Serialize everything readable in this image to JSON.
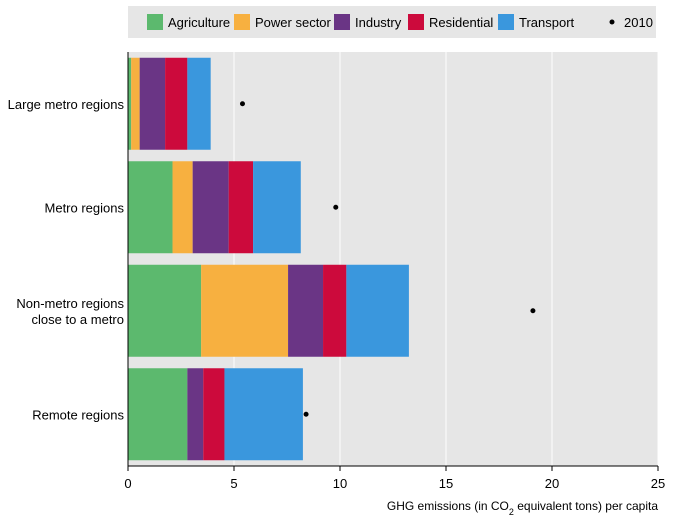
{
  "chart_data": {
    "type": "bar",
    "orientation": "horizontal",
    "stacked": true,
    "categories": [
      [
        "Large metro regions"
      ],
      [
        "Metro regions"
      ],
      [
        "Non-metro regions",
        "close to a metro"
      ],
      [
        "Remote regions"
      ]
    ],
    "series": [
      {
        "name": "Agriculture",
        "color": "#5cb96e",
        "values": [
          0.15,
          2.1,
          3.45,
          2.8
        ]
      },
      {
        "name": "Power sector",
        "color": "#f7b040",
        "values": [
          0.4,
          0.95,
          4.1,
          0.0
        ]
      },
      {
        "name": "Industry",
        "color": "#6a3585",
        "values": [
          1.2,
          1.7,
          1.65,
          0.75
        ]
      },
      {
        "name": "Residential",
        "color": "#cc0a3c",
        "values": [
          1.05,
          1.15,
          1.1,
          1.0
        ]
      },
      {
        "name": "Transport",
        "color": "#3a97dd",
        "values": [
          1.1,
          2.25,
          2.95,
          3.7
        ]
      }
    ],
    "markers": {
      "name": "2010",
      "values": [
        5.4,
        9.8,
        19.1,
        8.4
      ]
    },
    "xlim": [
      0,
      25
    ],
    "xticks": [
      "0",
      "5",
      "10",
      "15",
      "20",
      "25"
    ],
    "xlabel": {
      "prefix": "GHG emissions (in CO",
      "sub": "2",
      "suffix": " equivalent tons) per capita"
    },
    "grid": true,
    "legend_position": "top"
  }
}
